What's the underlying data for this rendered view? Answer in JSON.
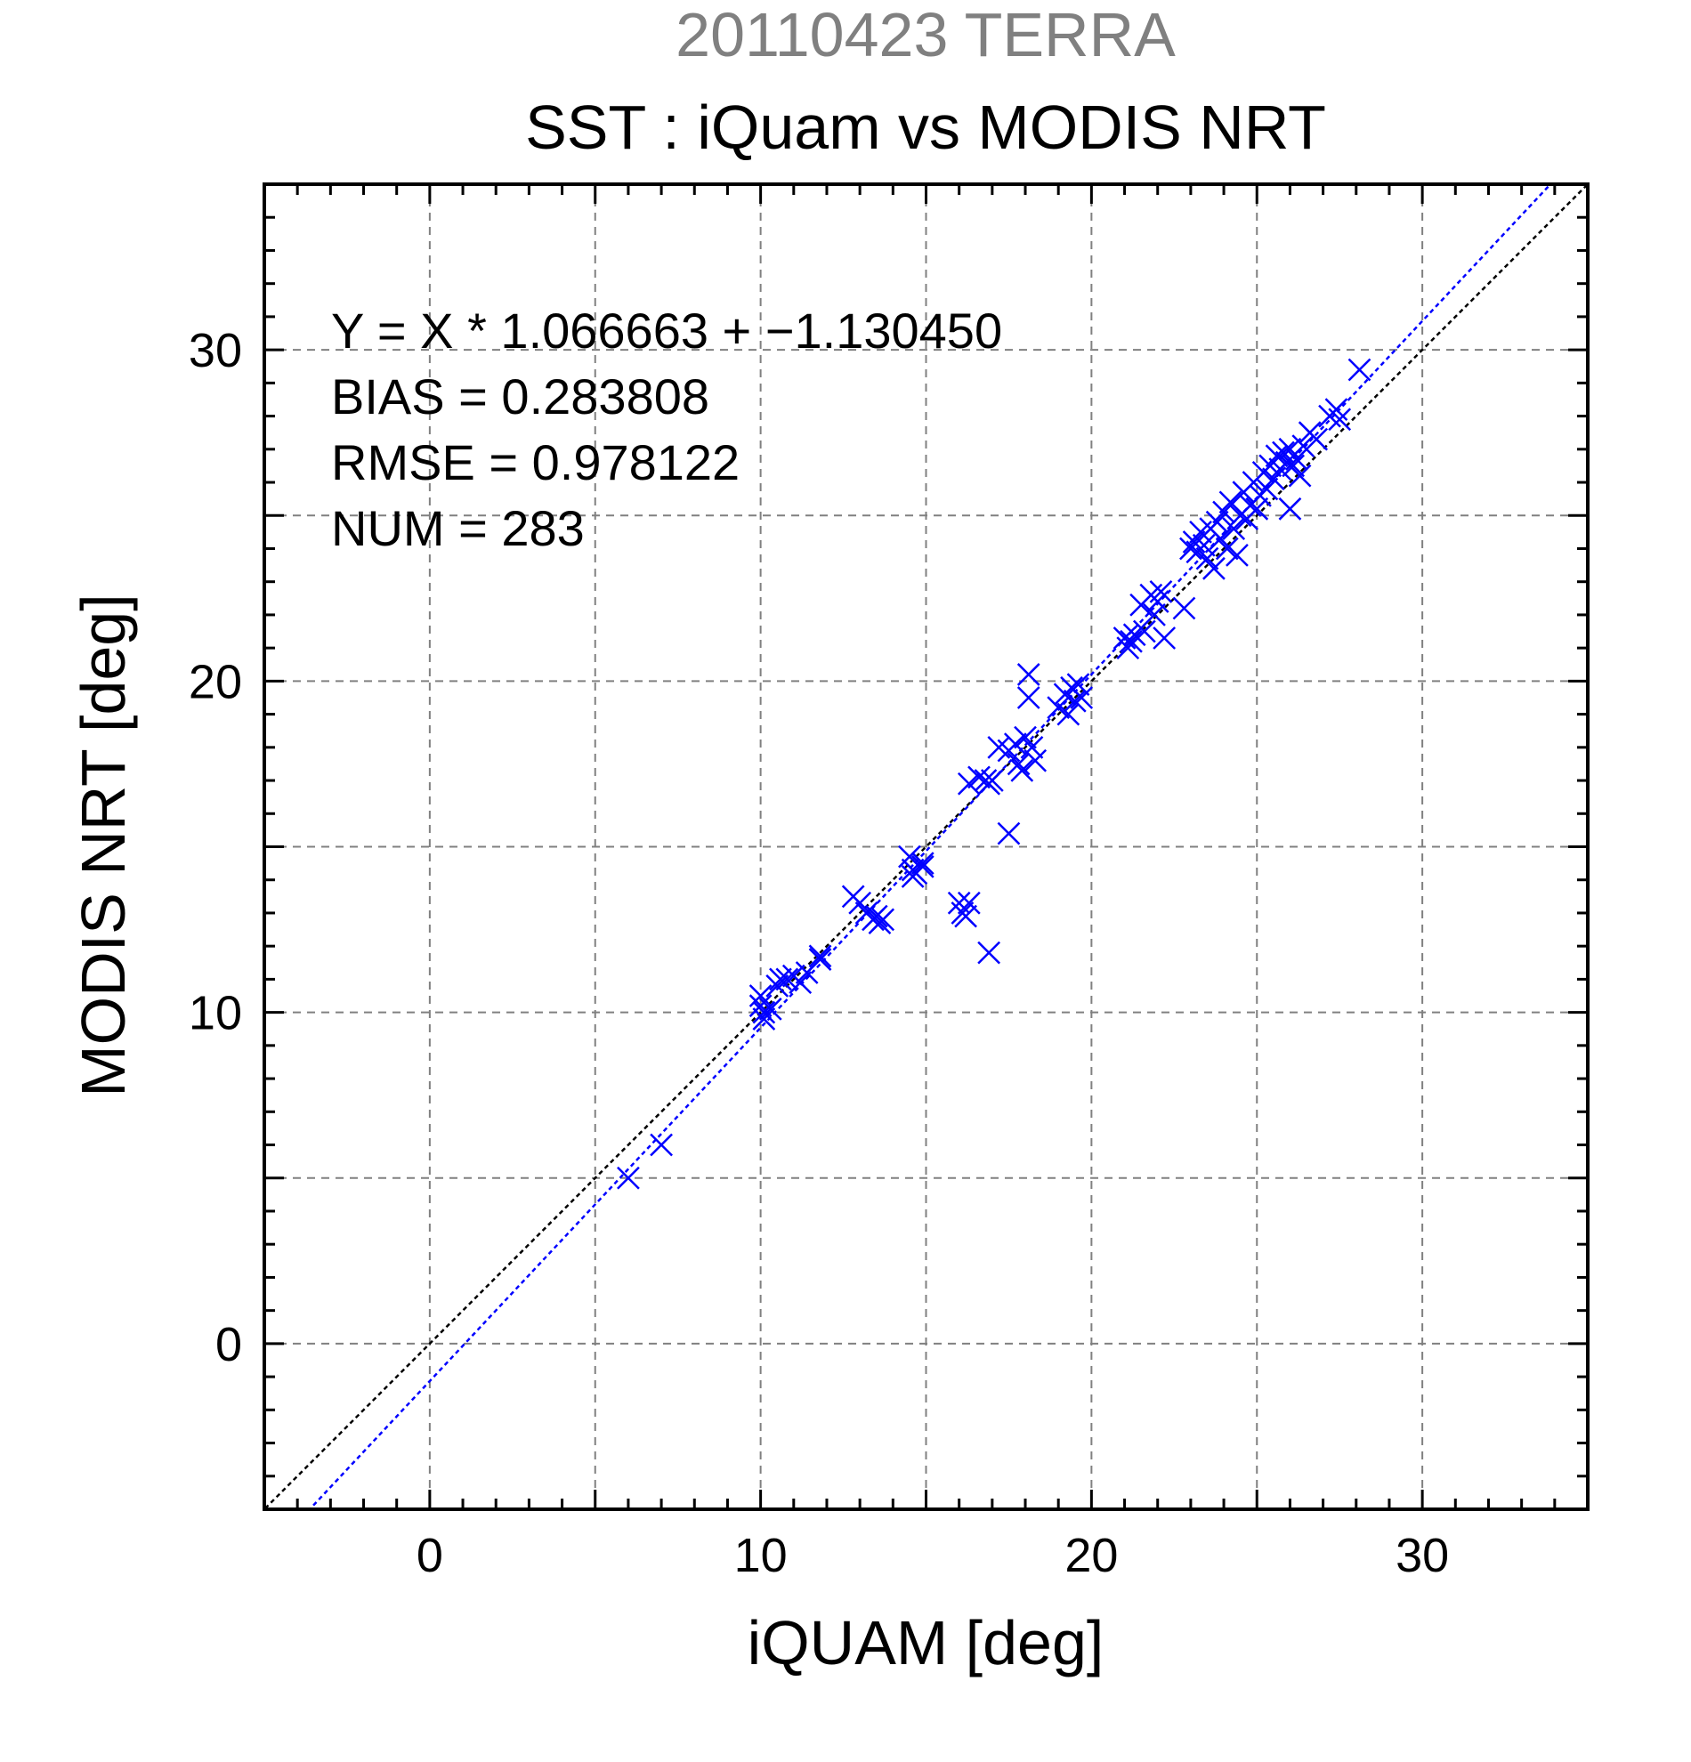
{
  "chart_data": {
    "type": "scatter",
    "title": "20110423 TERRA",
    "subtitle": "SST : iQuam vs MODIS NRT",
    "xlabel": "iQUAM [deg]",
    "ylabel": "MODIS NRT [deg]",
    "xlim": [
      -5,
      35
    ],
    "ylim": [
      -5,
      35
    ],
    "xticks": [
      0,
      10,
      20,
      30
    ],
    "yticks": [
      0,
      10,
      20,
      30
    ],
    "grid": true,
    "colors": {
      "points": "#0000ff",
      "fit_line": "#0000ff",
      "identity_line": "#000000",
      "title": "#808080"
    },
    "marker": "x",
    "stats": [
      "Y = X * 1.066663 + −1.130450",
      "BIAS = 0.283808",
      "RMSE = 0.978122",
      "NUM = 283"
    ],
    "fit_line": {
      "slope": 1.066663,
      "intercept": -1.13045
    },
    "identity_line": {
      "slope": 1,
      "intercept": 0
    },
    "series": [
      {
        "points": [
          [
            6.0,
            5.0
          ],
          [
            7.0,
            6.0
          ],
          [
            10.0,
            10.5
          ],
          [
            10.0,
            10.2
          ],
          [
            10.1,
            10.0
          ],
          [
            10.1,
            9.8
          ],
          [
            10.3,
            10.1
          ],
          [
            10.5,
            10.8
          ],
          [
            10.6,
            11.0
          ],
          [
            10.8,
            11.0
          ],
          [
            11.0,
            11.1
          ],
          [
            11.2,
            10.9
          ],
          [
            11.4,
            11.2
          ],
          [
            11.8,
            11.7
          ],
          [
            11.8,
            11.6
          ],
          [
            12.8,
            13.5
          ],
          [
            13.0,
            13.3
          ],
          [
            13.2,
            13.0
          ],
          [
            13.4,
            12.8
          ],
          [
            13.5,
            12.9
          ],
          [
            13.6,
            12.7
          ],
          [
            13.7,
            12.8
          ],
          [
            14.5,
            14.7
          ],
          [
            14.6,
            14.3
          ],
          [
            14.6,
            14.1
          ],
          [
            14.7,
            14.2
          ],
          [
            14.9,
            14.5
          ],
          [
            14.9,
            14.4
          ],
          [
            16.0,
            13.3
          ],
          [
            16.1,
            13.0
          ],
          [
            16.2,
            12.9
          ],
          [
            16.3,
            13.3
          ],
          [
            16.9,
            11.8
          ],
          [
            16.3,
            16.9
          ],
          [
            16.6,
            17.1
          ],
          [
            16.8,
            17.0
          ],
          [
            16.9,
            16.9
          ],
          [
            17.0,
            17.0
          ],
          [
            17.2,
            18.0
          ],
          [
            17.5,
            17.9
          ],
          [
            17.5,
            15.4
          ],
          [
            17.7,
            18.1
          ],
          [
            17.8,
            17.5
          ],
          [
            17.9,
            17.3
          ],
          [
            18.0,
            18.3
          ],
          [
            18.1,
            20.2
          ],
          [
            18.1,
            19.5
          ],
          [
            18.2,
            18.0
          ],
          [
            18.3,
            17.6
          ],
          [
            19.0,
            19.2
          ],
          [
            19.2,
            19.6
          ],
          [
            19.3,
            19.0
          ],
          [
            19.4,
            19.8
          ],
          [
            19.5,
            19.4
          ],
          [
            19.6,
            19.9
          ],
          [
            19.7,
            19.5
          ],
          [
            21.0,
            21.3
          ],
          [
            21.1,
            21.0
          ],
          [
            21.2,
            21.2
          ],
          [
            21.3,
            21.4
          ],
          [
            21.5,
            22.3
          ],
          [
            21.6,
            21.5
          ],
          [
            21.8,
            22.6
          ],
          [
            21.9,
            22.0
          ],
          [
            22.0,
            22.4
          ],
          [
            22.1,
            22.7
          ],
          [
            22.2,
            21.3
          ],
          [
            22.8,
            22.2
          ],
          [
            23.0,
            24.0
          ],
          [
            23.1,
            24.2
          ],
          [
            23.2,
            23.9
          ],
          [
            23.3,
            24.5
          ],
          [
            23.4,
            24.1
          ],
          [
            23.5,
            23.7
          ],
          [
            23.6,
            24.6
          ],
          [
            23.7,
            23.4
          ],
          [
            23.8,
            24.8
          ],
          [
            23.9,
            24.3
          ],
          [
            24.0,
            25.1
          ],
          [
            24.1,
            24.0
          ],
          [
            24.2,
            25.4
          ],
          [
            24.3,
            24.6
          ],
          [
            24.4,
            23.8
          ],
          [
            24.5,
            25.0
          ],
          [
            24.6,
            25.7
          ],
          [
            24.7,
            24.9
          ],
          [
            24.8,
            25.3
          ],
          [
            24.9,
            26.0
          ],
          [
            25.0,
            25.2
          ],
          [
            25.1,
            25.6
          ],
          [
            25.2,
            26.3
          ],
          [
            25.3,
            25.8
          ],
          [
            25.4,
            26.5
          ],
          [
            25.5,
            26.1
          ],
          [
            25.6,
            26.8
          ],
          [
            25.7,
            26.4
          ],
          [
            25.8,
            26.9
          ],
          [
            25.9,
            26.6
          ],
          [
            26.0,
            27.0
          ],
          [
            26.1,
            26.5
          ],
          [
            26.2,
            26.7
          ],
          [
            26.3,
            26.2
          ],
          [
            26.4,
            27.1
          ],
          [
            26.0,
            25.2
          ],
          [
            26.6,
            27.5
          ],
          [
            26.8,
            27.3
          ],
          [
            27.2,
            28.0
          ],
          [
            27.4,
            28.2
          ],
          [
            27.5,
            27.9
          ],
          [
            28.1,
            29.4
          ]
        ]
      }
    ]
  }
}
